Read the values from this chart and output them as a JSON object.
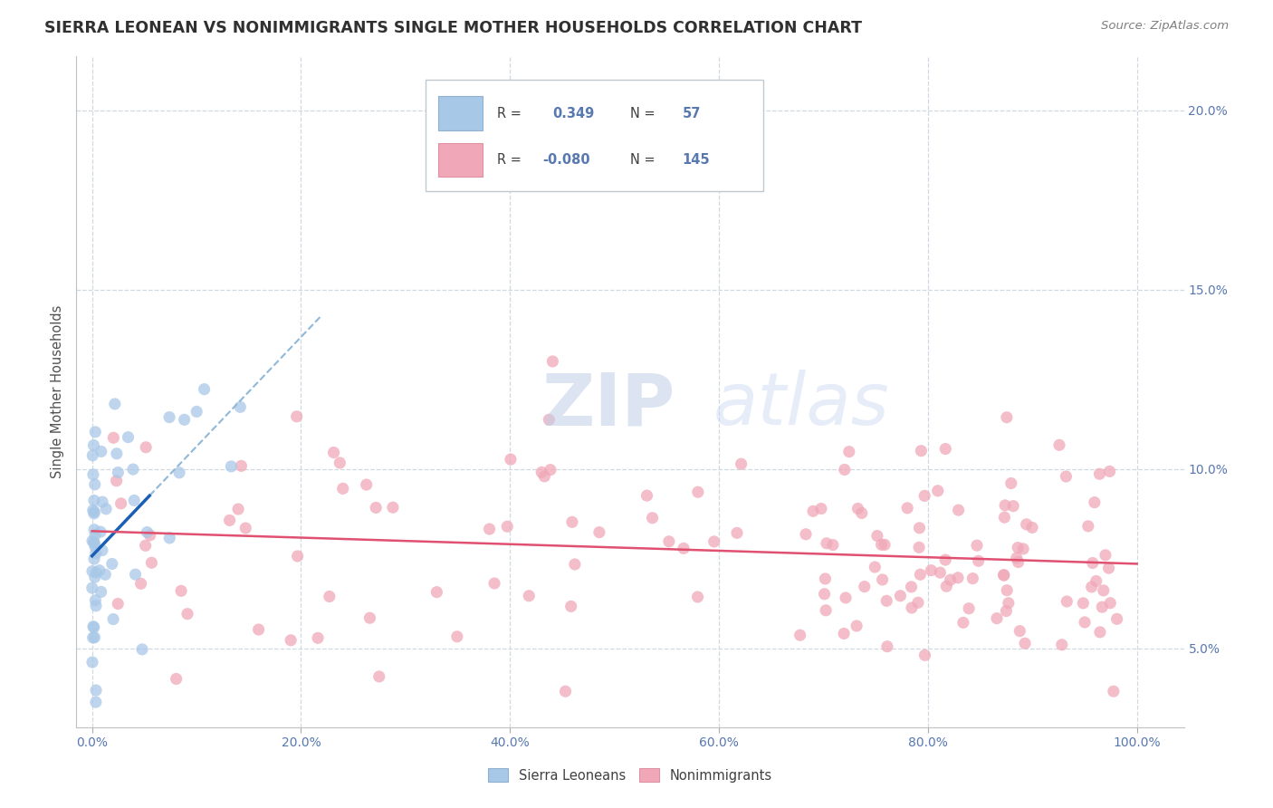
{
  "title": "SIERRA LEONEAN VS NONIMMIGRANTS SINGLE MOTHER HOUSEHOLDS CORRELATION CHART",
  "source": "Source: ZipAtlas.com",
  "ylabel_label": "Single Mother Households",
  "legend_bottom": [
    "Sierra Leoneans",
    "Nonimmigrants"
  ],
  "R_sierra": 0.349,
  "N_sierra": 57,
  "R_nonimm": -0.08,
  "N_nonimm": 145,
  "sierra_color": "#a8c8e8",
  "nonimm_color": "#f0a8b8",
  "sierra_line_color": "#1a5fb4",
  "nonimm_line_color": "#e05070",
  "dashed_line_color": "#90b8d8",
  "background_color": "#ffffff",
  "grid_color": "#d0d8e0",
  "title_color": "#303030",
  "axis_label_color": "#505050",
  "tick_color": "#5878b0",
  "watermark_color": "#d0dff0",
  "ylim_min": 0.028,
  "ylim_max": 0.215,
  "xlim_min": -0.015,
  "xlim_max": 1.045
}
